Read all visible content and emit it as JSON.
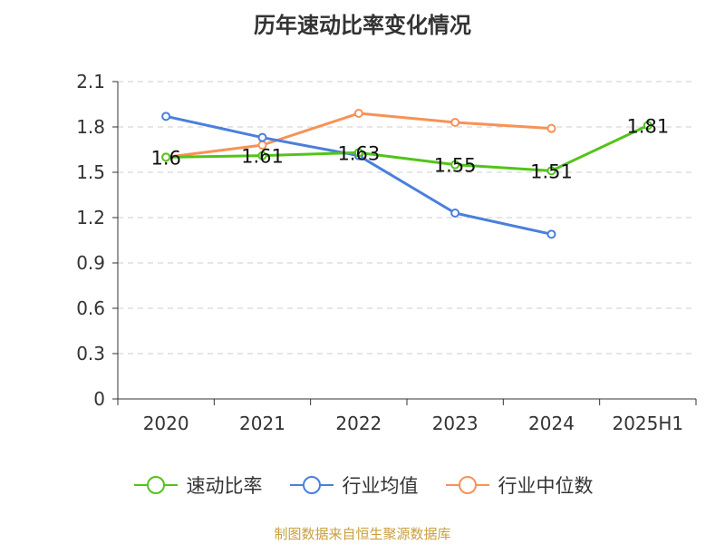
{
  "chart_data": {
    "type": "line",
    "title": "历年速动比率变化情况",
    "categories": [
      "2020",
      "2021",
      "2022",
      "2023",
      "2024",
      "2025H1"
    ],
    "ylim": [
      0,
      2.1
    ],
    "yticks": [
      "0",
      "0.3",
      "0.6",
      "0.9",
      "1.2",
      "1.5",
      "1.8",
      "2.1"
    ],
    "grid": true,
    "legend_position": "bottom",
    "series": [
      {
        "name": "速动比率",
        "color": "#52c41a",
        "values": [
          1.6,
          1.61,
          1.63,
          1.55,
          1.51,
          1.81
        ],
        "data_labels": [
          "1.6",
          "1.61",
          "1.63",
          "1.55",
          "1.51",
          "1.81"
        ]
      },
      {
        "name": "行业均值",
        "color": "#4a7fdc",
        "values": [
          1.87,
          1.73,
          1.61,
          1.23,
          1.09,
          null
        ]
      },
      {
        "name": "行业中位数",
        "color": "#f79256",
        "values": [
          1.6,
          1.68,
          1.89,
          1.83,
          1.79,
          null
        ]
      }
    ]
  },
  "source": "制图数据来自恒生聚源数据库"
}
